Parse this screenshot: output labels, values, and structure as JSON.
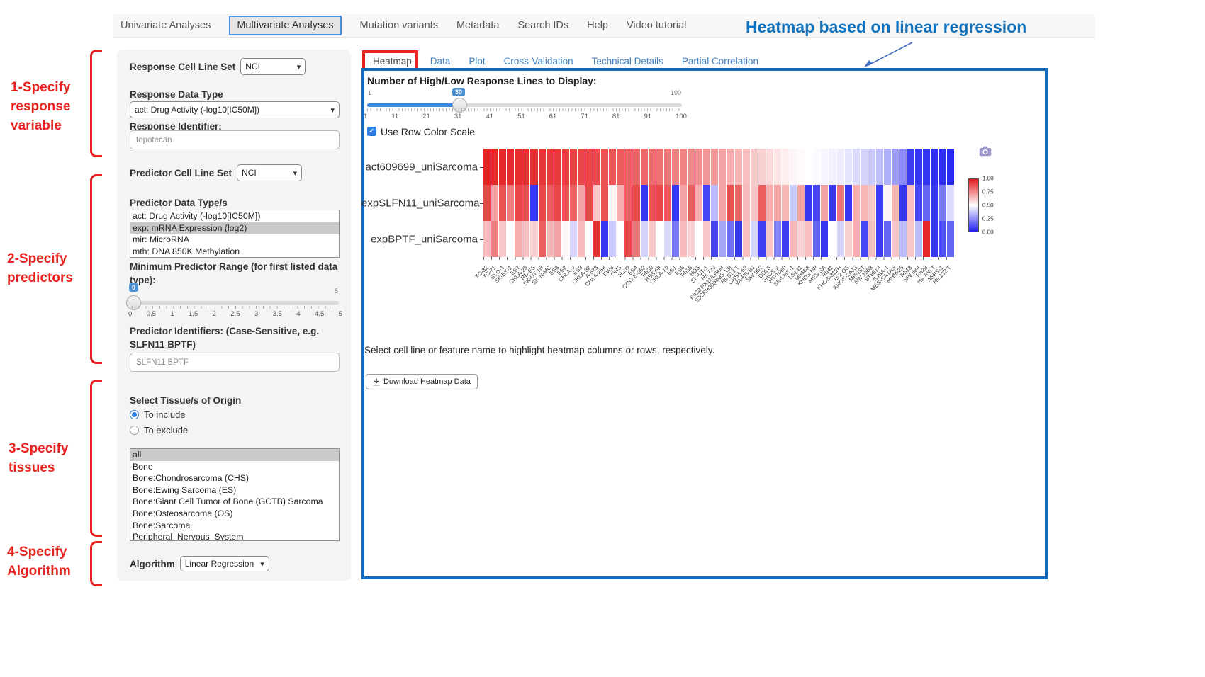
{
  "nav": {
    "items": [
      "Univariate Analyses",
      "Multivariate Analyses",
      "Mutation variants",
      "Metadata",
      "Search IDs",
      "Help",
      "Video tutorial"
    ],
    "active": "Multivariate Analyses"
  },
  "annotations": {
    "title": "Heatmap based on linear regression",
    "step1": "1-Specify\nresponse\nvariable",
    "step2": "2-Specify\npredictors",
    "step3": "3-Specify\ntissues",
    "step4": "4-Specify\nAlgorithm",
    "accent_red": "#e8231f",
    "accent_blue": "#1071bc"
  },
  "sidebar": {
    "response_cell_line_set_label": "Response Cell Line Set",
    "response_cell_line_set_value": "NCI",
    "response_data_type_label": "Response Data Type",
    "response_data_type_value": "act: Drug Activity (-log10[IC50M])",
    "response_identifier_label": "Response Identifier:",
    "response_identifier_value": "topotecan",
    "predictor_cell_line_set_label": "Predictor Cell Line Set",
    "predictor_cell_line_set_value": "NCI",
    "predictor_data_types_label": "Predictor Data Type/s",
    "predictor_data_types_options": [
      "act: Drug Activity (-log10[IC50M])",
      "exp: mRNA Expression (log2)",
      "mir: MicroRNA",
      "mth: DNA 850K Methylation"
    ],
    "predictor_data_types_selected": "exp: mRNA Expression (log2)",
    "min_predictor_range_label": "Minimum Predictor Range (for first listed data type):",
    "min_predictor_range_value": "0",
    "min_predictor_range_max": "5",
    "min_predictor_range_ticks": [
      "0",
      "0.5",
      "1",
      "1.5",
      "2",
      "2.5",
      "3",
      "3.5",
      "4",
      "4.5",
      "5"
    ],
    "predictor_identifiers_label": "Predictor Identifiers: (Case-Sensitive, e.g. SLFN11 BPTF)",
    "predictor_identifiers_value": "SLFN11 BPTF",
    "tissue_label": "Select Tissue/s of Origin",
    "tissue_include_label": "To include",
    "tissue_exclude_label": "To exclude",
    "tissue_mode": "To include",
    "tissue_options": [
      "all",
      "Bone",
      "Bone:Chondrosarcoma (CHS)",
      "Bone:Ewing Sarcoma (ES)",
      "Bone:Giant Cell Tumor of Bone (GCTB) Sarcoma",
      "Bone:Osteosarcoma (OS)",
      "Bone:Sarcoma",
      "Peripheral_Nervous_System"
    ],
    "tissue_selected": "all",
    "algorithm_label": "Algorithm",
    "algorithm_value": "Linear Regression"
  },
  "main": {
    "tabs": [
      "Heatmap",
      "Data",
      "Plot",
      "Cross-Validation",
      "Technical Details",
      "Partial Correlation"
    ],
    "active_tab": "Heatmap",
    "slider_label": "Number of High/Low Response Lines to Display:",
    "slider_min": "1",
    "slider_max": "100",
    "slider_value": "30",
    "slider_ticks": [
      "1",
      "11",
      "21",
      "31",
      "41",
      "51",
      "61",
      "71",
      "81",
      "91",
      "100"
    ],
    "row_color_scale_label": "Use Row Color Scale",
    "row_color_scale_checked": true,
    "hint_text": "Select cell line or feature name to highlight heatmap columns or rows, respectively.",
    "download_button_label": "Download Heatmap Data"
  },
  "chart_data": {
    "type": "heatmap",
    "rows": [
      "act609699_uniSarcoma",
      "expSLFN11_uniSarcoma",
      "expBPTF_uniSarcoma"
    ],
    "columns": [
      "TC-32",
      "TC-71",
      "SYO-1",
      "SK-ES-1",
      "ES7",
      "CHLA-25",
      "RD-ES",
      "SK-UT-1B",
      "SK-N-MC",
      "ES8",
      "ES2",
      "CHLA-9",
      "ES3",
      "CHLA-32",
      "A-673",
      "CHLA-258",
      "EW8",
      "OHS",
      "Hu09",
      "ES4",
      "COG-E-352",
      "Rh30",
      "HSSY-II",
      "CHLA-10",
      "ES1",
      "ES6",
      "Rh36",
      "HOS",
      "SK-UT-1",
      "Hs 729",
      "Rh28 PX11/LPAM",
      "SJCRH30(RMS 13)",
      "Hs 913.T",
      "CHSA-59",
      "VA-ES-BJ",
      "SW 982",
      "DDLS",
      "SAOS-2",
      "HT-1080",
      "SK-LMS-1",
      "LS141",
      "MHM-8",
      "KHOS NP",
      "MES-SA",
      "Rh41",
      "KHOS-312H",
      "U-2 OS",
      "KHOS-240S",
      "MPNST",
      "SW 1353",
      "ST8814",
      "SJSA-1",
      "MES-SA Dx5",
      "MHM-25",
      "Rh18",
      "SW 684",
      "Rh28",
      "Hs 706.T",
      "ASPS-1",
      "Hs 132.T"
    ],
    "series": [
      {
        "name": "act609699_uniSarcoma",
        "values": [
          0.98,
          0.97,
          0.97,
          0.96,
          0.96,
          0.95,
          0.95,
          0.94,
          0.93,
          0.93,
          0.92,
          0.91,
          0.9,
          0.9,
          0.89,
          0.88,
          0.87,
          0.86,
          0.85,
          0.84,
          0.83,
          0.82,
          0.81,
          0.8,
          0.78,
          0.77,
          0.76,
          0.75,
          0.73,
          0.72,
          0.7,
          0.68,
          0.66,
          0.64,
          0.62,
          0.6,
          0.58,
          0.56,
          0.54,
          0.52,
          0.51,
          0.5,
          0.49,
          0.48,
          0.47,
          0.46,
          0.44,
          0.42,
          0.4,
          0.38,
          0.35,
          0.32,
          0.28,
          0.24,
          0.06,
          0.05,
          0.04,
          0.03,
          0.03,
          0.02
        ]
      },
      {
        "name": "expSLFN11_uniSarcoma",
        "values": [
          0.9,
          0.7,
          0.88,
          0.78,
          0.9,
          0.88,
          0.05,
          0.9,
          0.86,
          0.9,
          0.88,
          0.84,
          0.7,
          0.9,
          0.62,
          0.88,
          0.52,
          0.68,
          0.85,
          0.9,
          0.05,
          0.88,
          0.9,
          0.86,
          0.05,
          0.7,
          0.85,
          0.68,
          0.08,
          0.35,
          0.7,
          0.88,
          0.84,
          0.65,
          0.62,
          0.85,
          0.68,
          0.7,
          0.66,
          0.38,
          0.7,
          0.05,
          0.08,
          0.7,
          0.05,
          0.8,
          0.05,
          0.68,
          0.66,
          0.62,
          0.06,
          0.52,
          0.66,
          0.05,
          0.64,
          0.08,
          0.15,
          0.05,
          0.2,
          0.42
        ]
      },
      {
        "name": "expBPTF_uniSarcoma",
        "values": [
          0.65,
          0.78,
          0.62,
          0.5,
          0.68,
          0.64,
          0.6,
          0.85,
          0.66,
          0.7,
          0.52,
          0.4,
          0.65,
          0.5,
          0.95,
          0.05,
          0.38,
          0.5,
          0.9,
          0.8,
          0.4,
          0.62,
          0.5,
          0.42,
          0.2,
          0.65,
          0.6,
          0.5,
          0.62,
          0.08,
          0.3,
          0.18,
          0.05,
          0.64,
          0.4,
          0.07,
          0.62,
          0.22,
          0.06,
          0.66,
          0.6,
          0.64,
          0.15,
          0.05,
          0.5,
          0.4,
          0.6,
          0.68,
          0.08,
          0.64,
          0.06,
          0.15,
          0.62,
          0.35,
          0.62,
          0.35,
          0.97,
          0.05,
          0.1,
          0.15
        ]
      }
    ],
    "value_range": [
      0,
      1
    ],
    "colorscale": {
      "high": "#e31a1c",
      "mid": "#ffffff",
      "low": "#2121f1"
    },
    "legend_ticks": [
      "1.00",
      "0.75",
      "0.50",
      "0.25",
      "0.00"
    ],
    "legend_position": "right",
    "xlabel_rotation_deg": -45
  }
}
